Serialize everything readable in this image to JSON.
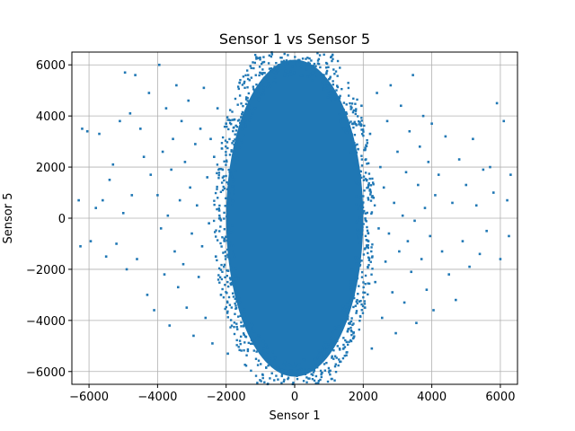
{
  "chart_data": {
    "type": "scatter",
    "title": "Sensor 1 vs Sensor 5",
    "xlabel": "Sensor 1",
    "ylabel": "Sensor 5",
    "xlim": [
      -6500,
      6500
    ],
    "ylim": [
      -6500,
      6500
    ],
    "x_ticks": [
      -6000,
      -4000,
      -2000,
      0,
      2000,
      4000,
      6000
    ],
    "y_ticks": [
      -6000,
      -4000,
      -2000,
      0,
      2000,
      4000,
      6000
    ],
    "x_tick_labels": [
      "−6000",
      "−4000",
      "−2000",
      "0",
      "2000",
      "4000",
      "6000"
    ],
    "y_tick_labels": [
      "−6000",
      "−4000",
      "−2000",
      "0",
      "2000",
      "4000",
      "6000"
    ],
    "grid": true,
    "marker_color": "#1f77b4",
    "series": [
      {
        "points": [
          [
            -6300,
            700
          ],
          [
            -6250,
            -1100
          ],
          [
            -6200,
            3500
          ],
          [
            -6050,
            3400
          ],
          [
            -5950,
            -900
          ],
          [
            -5800,
            400
          ],
          [
            -5700,
            3300
          ],
          [
            -5600,
            700
          ],
          [
            -5500,
            -1500
          ],
          [
            -5400,
            1500
          ],
          [
            -5300,
            2100
          ],
          [
            -5200,
            -1000
          ],
          [
            -5100,
            3800
          ],
          [
            -5000,
            200
          ],
          [
            -4950,
            5700
          ],
          [
            -4900,
            -2000
          ],
          [
            -4800,
            4100
          ],
          [
            -4750,
            900
          ],
          [
            -4650,
            5600
          ],
          [
            -4600,
            -1600
          ],
          [
            -4500,
            3500
          ],
          [
            -4400,
            2400
          ],
          [
            -4300,
            -3000
          ],
          [
            -4250,
            4900
          ],
          [
            -4200,
            1700
          ],
          [
            -4100,
            -3600
          ],
          [
            -4000,
            900
          ],
          [
            -3950,
            6000
          ],
          [
            -3900,
            -400
          ],
          [
            -3850,
            2600
          ],
          [
            -3800,
            -2200
          ],
          [
            -3750,
            4300
          ],
          [
            -3700,
            100
          ],
          [
            -3650,
            -4200
          ],
          [
            -3600,
            1900
          ],
          [
            -3550,
            3100
          ],
          [
            -3500,
            -1300
          ],
          [
            -3450,
            5200
          ],
          [
            -3400,
            -2700
          ],
          [
            -3350,
            700
          ],
          [
            -3300,
            3800
          ],
          [
            -3250,
            -1800
          ],
          [
            -3200,
            2200
          ],
          [
            -3150,
            -3500
          ],
          [
            -3100,
            4600
          ],
          [
            -3050,
            1200
          ],
          [
            -3000,
            -600
          ],
          [
            -2950,
            -4600
          ],
          [
            -2900,
            2900
          ],
          [
            -2850,
            500
          ],
          [
            -2800,
            -2300
          ],
          [
            -2750,
            3500
          ],
          [
            -2700,
            -1100
          ],
          [
            -2650,
            5100
          ],
          [
            -2600,
            -3900
          ],
          [
            -2550,
            1600
          ],
          [
            -2500,
            -200
          ],
          [
            -2450,
            3100
          ],
          [
            -2400,
            -4900
          ],
          [
            -2350,
            2400
          ],
          [
            -2300,
            -1500
          ],
          [
            -2250,
            4300
          ],
          [
            -2200,
            300
          ],
          [
            -2150,
            -3000
          ],
          [
            -2100,
            1900
          ],
          [
            -2050,
            -800
          ],
          [
            -2000,
            3700
          ],
          [
            -1950,
            -5300
          ],
          [
            -1900,
            1000
          ],
          [
            -1850,
            -2600
          ],
          [
            1850,
            2700
          ],
          [
            1900,
            -1700
          ],
          [
            1950,
            4400
          ],
          [
            2000,
            200
          ],
          [
            2050,
            -3500
          ],
          [
            2100,
            1500
          ],
          [
            2150,
            -900
          ],
          [
            2200,
            3300
          ],
          [
            2250,
            -5100
          ],
          [
            2300,
            800
          ],
          [
            2350,
            -2500
          ],
          [
            2400,
            4900
          ],
          [
            2450,
            -400
          ],
          [
            2500,
            2000
          ],
          [
            2550,
            -3900
          ],
          [
            2600,
            1200
          ],
          [
            2650,
            -1700
          ],
          [
            2700,
            3800
          ],
          [
            2750,
            -600
          ],
          [
            2800,
            5200
          ],
          [
            2850,
            -2900
          ],
          [
            2900,
            600
          ],
          [
            2950,
            -4500
          ],
          [
            3000,
            2600
          ],
          [
            3050,
            -1300
          ],
          [
            3100,
            4400
          ],
          [
            3150,
            100
          ],
          [
            3200,
            -3300
          ],
          [
            3250,
            1800
          ],
          [
            3300,
            -900
          ],
          [
            3350,
            3400
          ],
          [
            3400,
            -2100
          ],
          [
            3450,
            5600
          ],
          [
            3500,
            -100
          ],
          [
            3550,
            -4100
          ],
          [
            3600,
            1300
          ],
          [
            3650,
            2800
          ],
          [
            3700,
            -1600
          ],
          [
            3750,
            4000
          ],
          [
            3800,
            400
          ],
          [
            3850,
            -2800
          ],
          [
            3900,
            2200
          ],
          [
            3950,
            -700
          ],
          [
            4000,
            3700
          ],
          [
            4050,
            -3600
          ],
          [
            4100,
            900
          ],
          [
            4200,
            1700
          ],
          [
            4300,
            -1300
          ],
          [
            4400,
            3200
          ],
          [
            4500,
            -2200
          ],
          [
            4600,
            600
          ],
          [
            4700,
            -3200
          ],
          [
            4800,
            2300
          ],
          [
            4900,
            -900
          ],
          [
            5000,
            1300
          ],
          [
            5100,
            -1900
          ],
          [
            5200,
            3100
          ],
          [
            5300,
            500
          ],
          [
            5400,
            -1400
          ],
          [
            5500,
            1900
          ],
          [
            5600,
            -500
          ],
          [
            5700,
            2000
          ],
          [
            5800,
            1000
          ],
          [
            5900,
            4500
          ],
          [
            6000,
            -1600
          ],
          [
            6100,
            3800
          ],
          [
            6200,
            700
          ],
          [
            6250,
            -700
          ],
          [
            6300,
            1700
          ]
        ]
      }
    ],
    "dense_core": {
      "x_center": 0,
      "y_center": 0,
      "x_half_width": 2000,
      "y_half_height": 6200
    }
  }
}
